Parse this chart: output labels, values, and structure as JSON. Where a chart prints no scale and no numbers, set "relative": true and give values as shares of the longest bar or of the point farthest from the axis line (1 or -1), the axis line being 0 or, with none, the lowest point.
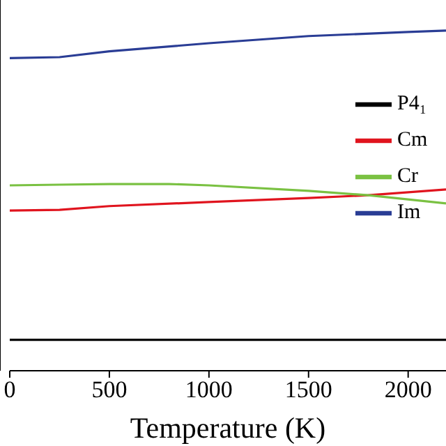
{
  "chart_data": {
    "type": "line",
    "xlabel": "Temperature (K)",
    "relative": true,
    "xlim": [
      0,
      2190
    ],
    "xticks": [
      0,
      500,
      1000,
      1500,
      2000
    ],
    "legend": "right",
    "marker": "none",
    "line_style": "solid",
    "grid": false,
    "series": [
      {
        "name": "P4₁",
        "color": "#000000",
        "x": [
          0,
          500,
          1000,
          1500,
          2000,
          2190
        ],
        "values": [
          0.091,
          0.091,
          0.091,
          0.091,
          0.091,
          0.091
        ]
      },
      {
        "name": "Cm",
        "color": "#e0141e",
        "x": [
          0,
          250,
          500,
          1000,
          1500,
          1800,
          2190
        ],
        "values": [
          0.471,
          0.473,
          0.484,
          0.496,
          0.508,
          0.516,
          0.533
        ]
      },
      {
        "name": "Cr",
        "color": "#7ac142",
        "x": [
          0,
          250,
          500,
          800,
          1000,
          1500,
          1800,
          2190
        ],
        "values": [
          0.545,
          0.547,
          0.549,
          0.549,
          0.545,
          0.529,
          0.516,
          0.492
        ]
      },
      {
        "name": "Im",
        "color": "#2a3d95",
        "x": [
          0,
          250,
          500,
          1000,
          1500,
          2000,
          2190
        ],
        "values": [
          0.919,
          0.922,
          0.939,
          0.963,
          0.984,
          0.996,
          1
        ]
      }
    ]
  }
}
